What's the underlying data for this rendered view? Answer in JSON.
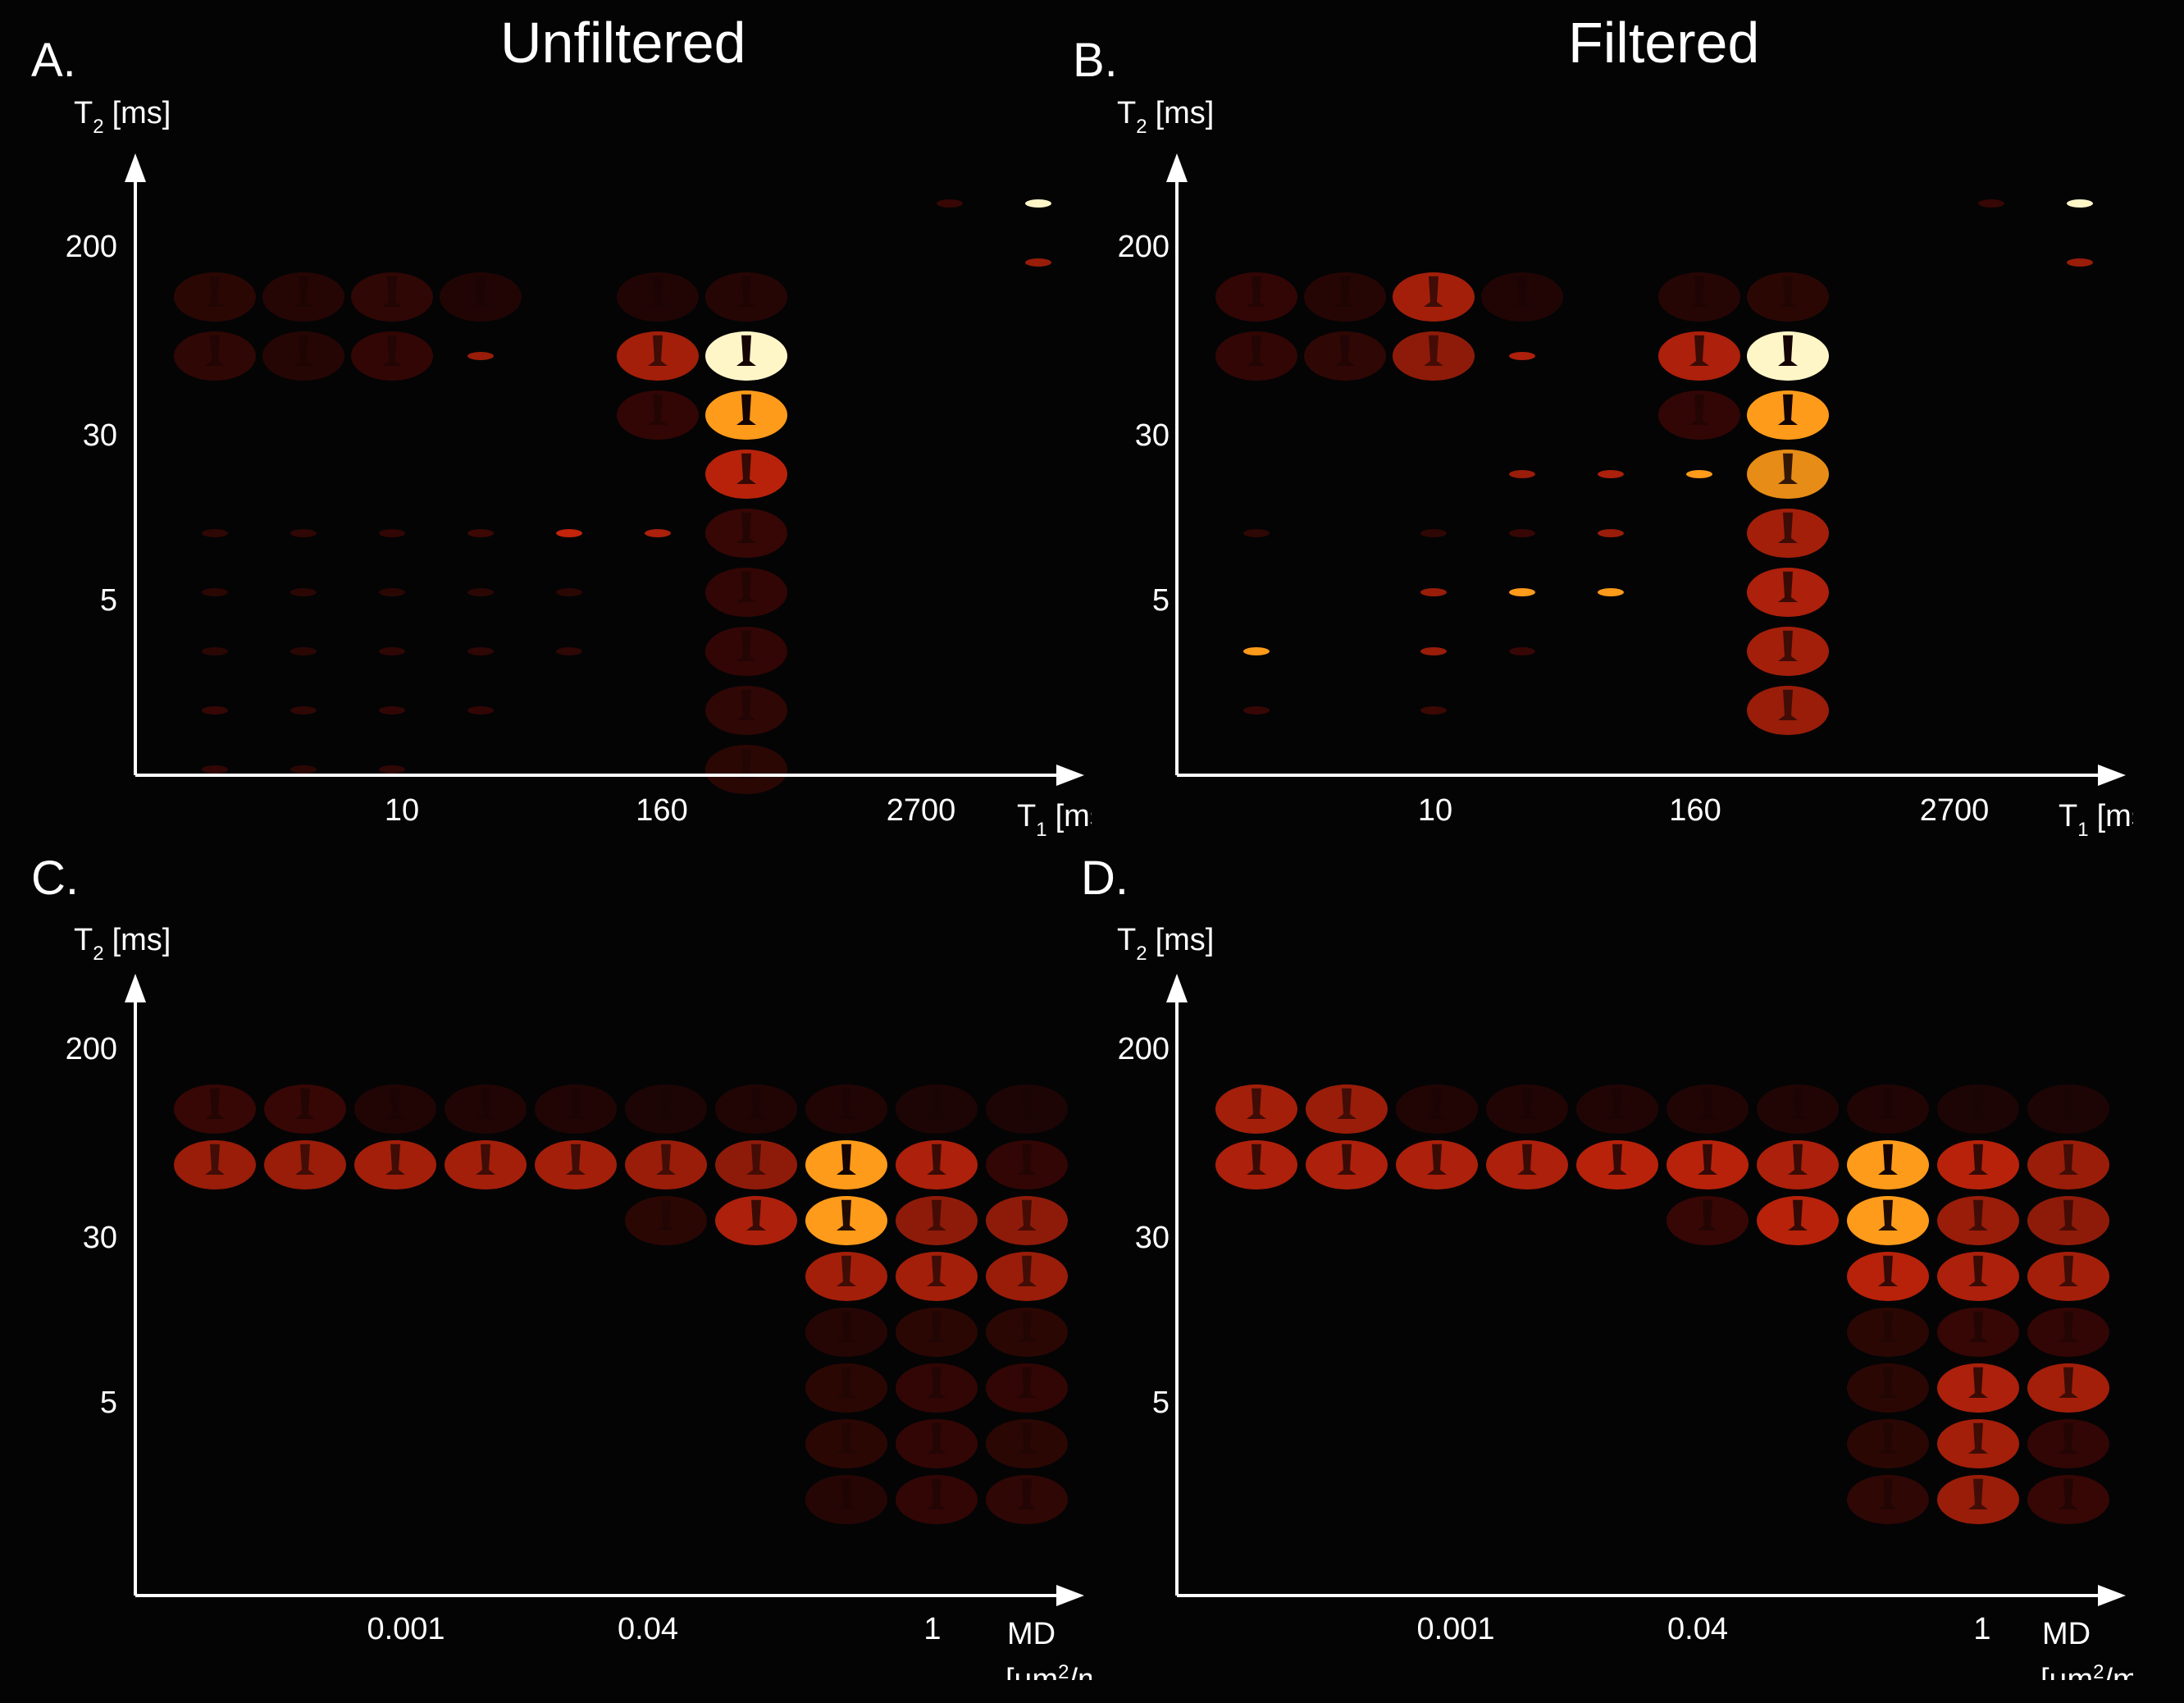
{
  "titles": {
    "unfiltered": "Unfiltered",
    "filtered": "Filtered"
  },
  "panels": [
    {
      "id": "a",
      "letter": "A.",
      "y_axis": {
        "symbol": "T",
        "subscript": "2",
        "unit": "[ms]",
        "ticks": [
          "200",
          "30",
          "5"
        ]
      },
      "x_axis": {
        "symbol": "T",
        "subscript": "1",
        "unit": "[ms]",
        "ticks": [
          "10",
          "160",
          "2700"
        ]
      }
    },
    {
      "id": "b",
      "letter": "B.",
      "y_axis": {
        "symbol": "T",
        "subscript": "2",
        "unit": "[ms]",
        "ticks": [
          "200",
          "30",
          "5"
        ]
      },
      "x_axis": {
        "symbol": "T",
        "subscript": "1",
        "unit": "[ms]",
        "ticks": [
          "10",
          "160",
          "2700"
        ]
      }
    },
    {
      "id": "c",
      "letter": "C.",
      "y_axis": {
        "symbol": "T",
        "subscript": "2",
        "unit": "[ms]",
        "ticks": [
          "200",
          "30",
          "5"
        ]
      },
      "x_axis": {
        "symbol": "MD",
        "unit_line": "[μm",
        "unit_sup": "2",
        "unit_tail": "/ms]",
        "ticks": [
          "0.001",
          "0.04",
          "1"
        ]
      }
    },
    {
      "id": "d",
      "letter": "D.",
      "y_axis": {
        "symbol": "T",
        "subscript": "2",
        "unit": "[ms]",
        "ticks": [
          "200",
          "30",
          "5"
        ]
      },
      "x_axis": {
        "symbol": "MD",
        "unit_line": "[μm",
        "unit_sup": "2",
        "unit_tail": "/ms]",
        "ticks": [
          "0.001",
          "0.04",
          "1"
        ]
      }
    }
  ],
  "colors": {
    "background": "#040405",
    "axis": "#ffffff",
    "hot_dark": "#5a0a05",
    "hot_mid": "#d8280c",
    "hot_bright": "#ff9b1a",
    "hot_white": "#fff6c8"
  }
}
